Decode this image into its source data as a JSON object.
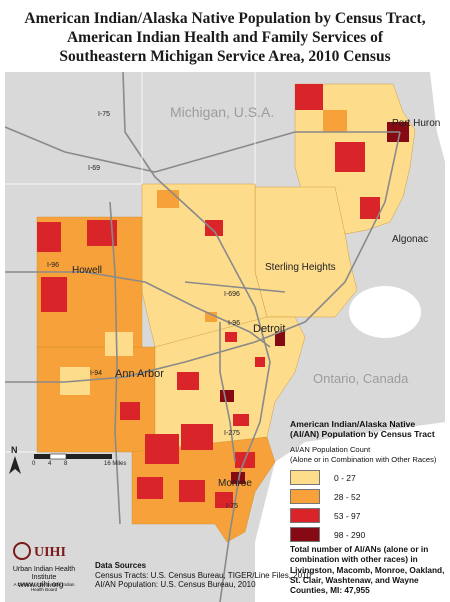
{
  "title": {
    "line1": "American Indian/Alaska Native Population by Census Tract,",
    "line2": "American Indian Health and Family Services of",
    "line3": "Southeastern Michigan Service Area, 2010 Census"
  },
  "map_labels": {
    "michigan": "Michigan, U.S.A.",
    "ontario": "Ontario, Canada",
    "port_huron": "Port Huron",
    "algonac": "Algonac",
    "sterling_heights": "Sterling Heights",
    "howell": "Howell",
    "detroit": "Detroit",
    "ann_arbor": "Ann Arbor",
    "monroe": "Monroe",
    "i75_north": "I-75",
    "i69": "I-69",
    "i96": "I-96",
    "i696": "I-696",
    "i96_east": "I-96",
    "i94": "I-94",
    "i275": "I-275",
    "i75_south": "I-75"
  },
  "scale_bar": {
    "ticks": [
      "0",
      "4",
      "8",
      "16"
    ],
    "unit_label": "16 Miles"
  },
  "north_arrow": {
    "letter": "N"
  },
  "legend": {
    "title_line1": "American Indian/Alaska Native",
    "title_line2": "(AI/AN) Population by Census Tract",
    "sub_line1": "AI/AN Population Count",
    "sub_line2": "(Alone or in Combination with Other Races)",
    "items": [
      {
        "label": "0 - 27",
        "color": "#fddc8c"
      },
      {
        "label": "28 - 52",
        "color": "#f6a13a"
      },
      {
        "label": "53 - 97",
        "color": "#d9242a"
      },
      {
        "label": "98 - 290",
        "color": "#860a14"
      }
    ]
  },
  "total": {
    "line1": "Total number of AI/ANs (alone or in",
    "line2": "combination with other races) in",
    "line3": "Livingston, Macomb, Monroe, Oakland,",
    "line4": "St. Clair, Washtenaw, and Wayne",
    "line5": "Counties, MI: 47,955"
  },
  "sources": {
    "heading": "Data Sources",
    "line1": "Census Tracts: U.S. Census Bureau, TIGER/Line Files, 2010",
    "line2": "AI/AN Population: U.S. Census Bureau, 2010"
  },
  "logo": {
    "mark": "UIHI",
    "name": "Urban Indian Health Institute",
    "tagline": "A Division of the Seattle Indian Health Board"
  },
  "url": "www.uihi.org",
  "colors": {
    "land": "#d9d9d9",
    "water": "#ffffff",
    "class1": "#fddc8c",
    "class2": "#f6a13a",
    "class3": "#d9242a",
    "class4": "#860a14",
    "road": "#8a8a8a"
  }
}
